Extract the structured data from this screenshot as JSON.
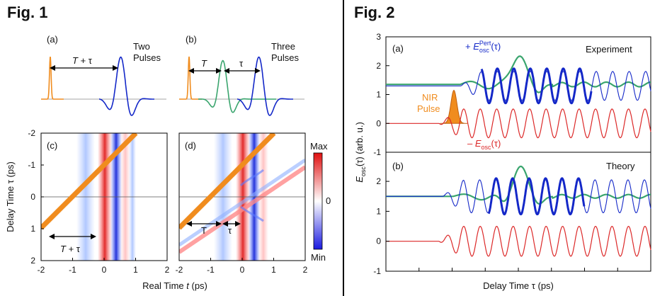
{
  "fig1": {
    "title": "Fig. 1",
    "panel_a": {
      "label": "(a)",
      "caption_line1": "Two",
      "caption_line2": "Pulses",
      "arrow_label": "T + τ"
    },
    "panel_b": {
      "label": "(b)",
      "caption_line1": "Three",
      "caption_line2": "Pulses",
      "arrow_label_T": "T",
      "arrow_label_tau": "τ"
    },
    "panel_c": {
      "label": "(c)",
      "arrow_label": "T + τ"
    },
    "panel_d": {
      "label": "(d)",
      "arrow_label_T": "T",
      "arrow_label_tau": "τ"
    },
    "x_axis_label": "Real Time t (ps)",
    "y_axis_label": "Delay Time τ (ps)",
    "x_ticks": [
      "-2",
      "-1",
      "0",
      "1",
      "2"
    ],
    "y_ticks": [
      "-2",
      "-1",
      "0",
      "1",
      "2"
    ],
    "colorbar": {
      "max_label": "Max",
      "mid_label": "0",
      "min_label": "Min"
    }
  },
  "fig2": {
    "title": "Fig. 2",
    "panel_a": {
      "label": "(a)",
      "tag": "Experiment",
      "blue_legend": "+ E",
      "blue_sub": "osc",
      "blue_sup": "Pert",
      "blue_arg": "(τ)",
      "red_legend": "– E",
      "red_sub": "osc",
      "red_arg": "(τ)",
      "nir_line1": "NIR",
      "nir_line2": "Pulse"
    },
    "panel_b": {
      "label": "(b)",
      "tag": "Theory"
    },
    "x_axis_label": "Delay Time τ (ps)",
    "y_axis_label_main": "E",
    "y_axis_label_sub": "osc",
    "y_axis_label_rest": "(τ) (arb. u.)",
    "y_ticks_a": [
      "3",
      "2",
      "1",
      "0",
      "-1"
    ],
    "y_ticks_b": [
      "2",
      "1",
      "0",
      "-1"
    ]
  },
  "colors": {
    "orange": "#f08c1e",
    "blue": "#1428c8",
    "green": "#3aa56e",
    "red": "#dc2828",
    "divider": "#000000"
  }
}
